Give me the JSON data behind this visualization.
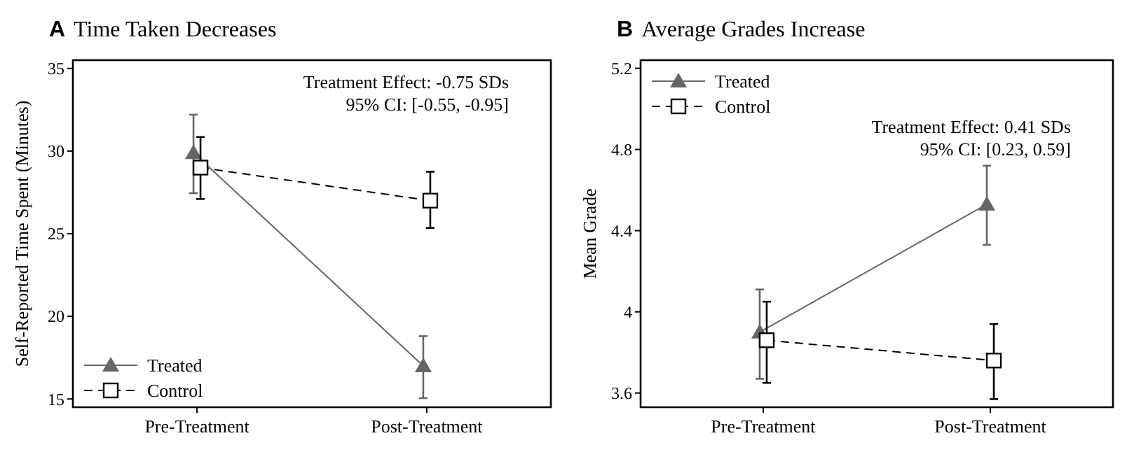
{
  "chart_data": [
    {
      "type": "line",
      "title": "A Time Taken Decreases",
      "ylabel": "Self-Reported Time Spent (Minutes)",
      "categories": [
        "Pre-Treatment",
        "Post-Treatment"
      ],
      "ylim": [
        14.5,
        35.5
      ],
      "yticks": [
        15,
        20,
        25,
        30,
        35
      ],
      "grid": false,
      "legend": "bottom left",
      "annotations": [
        "Treatment Effect: -0.75 SDs",
        "95% CI: [-0.55, -0.95]"
      ],
      "series": [
        {
          "name": "Treated",
          "color": "#666666",
          "values": [
            29.9,
            17.0
          ],
          "errors": [
            [
              27.45,
              32.2
            ],
            [
              15.05,
              18.8
            ]
          ],
          "marker": "triangle",
          "line_style": "solid"
        },
        {
          "name": "Control",
          "color": "#000000",
          "values": [
            29.0,
            27.0
          ],
          "errors": [
            [
              27.1,
              30.85
            ],
            [
              25.35,
              28.75
            ]
          ],
          "marker": "square",
          "line_style": "dashed"
        }
      ]
    },
    {
      "type": "line",
      "title": "B Average Grades Increase",
      "ylabel": "Mean Grade",
      "categories": [
        "Pre-Treatment",
        "Post-Treatment"
      ],
      "ylim": [
        3.53,
        5.24
      ],
      "yticks": [
        3.6,
        4,
        4.4,
        4.8,
        5.2
      ],
      "grid": false,
      "legend": "top left",
      "annotations": [
        "Treatment Effect: 0.41 SDs",
        "95% CI: [0.23, 0.59]"
      ],
      "series": [
        {
          "name": "Treated",
          "color": "#666666",
          "values": [
            3.9,
            4.53
          ],
          "errors": [
            [
              3.67,
              4.11
            ],
            [
              4.33,
              4.72
            ]
          ],
          "marker": "triangle",
          "line_style": "solid"
        },
        {
          "name": "Control",
          "color": "#000000",
          "values": [
            3.86,
            3.76
          ],
          "errors": [
            [
              3.65,
              4.05
            ],
            [
              3.57,
              3.94
            ]
          ],
          "marker": "square",
          "line_style": "dashed"
        }
      ]
    }
  ]
}
